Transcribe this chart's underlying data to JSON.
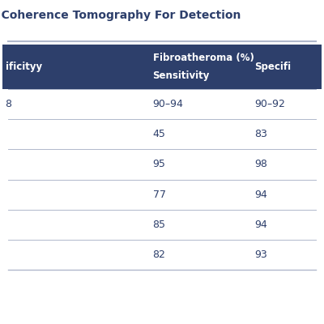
{
  "title": "l Coherence Tomography For Detection",
  "header_bg_color": "#2d3f6b",
  "header_text_color": "#ffffff",
  "body_bg_color": "#ffffff",
  "row_line_color": "#b0b8cc",
  "text_color": "#2d3f6b",
  "title_color": "#2d3f6b",
  "col1_header": "ificityy",
  "col2_header_line1": "Fibroatheroma (%)",
  "col2_header_line2": "Sensitivity",
  "col3_header": "Specifi",
  "rows": [
    {
      "col1": "8",
      "col2": "90–94",
      "col3": "90–92"
    },
    {
      "col1": "",
      "col2": "45",
      "col3": "83"
    },
    {
      "col1": "",
      "col2": "95",
      "col3": "98"
    },
    {
      "col1": "",
      "col2": "77",
      "col3": "94"
    },
    {
      "col1": "",
      "col2": "85",
      "col3": "94"
    },
    {
      "col1": "",
      "col2": "82",
      "col3": "93"
    }
  ],
  "figsize": [
    4.0,
    4.0
  ],
  "dpi": 100
}
